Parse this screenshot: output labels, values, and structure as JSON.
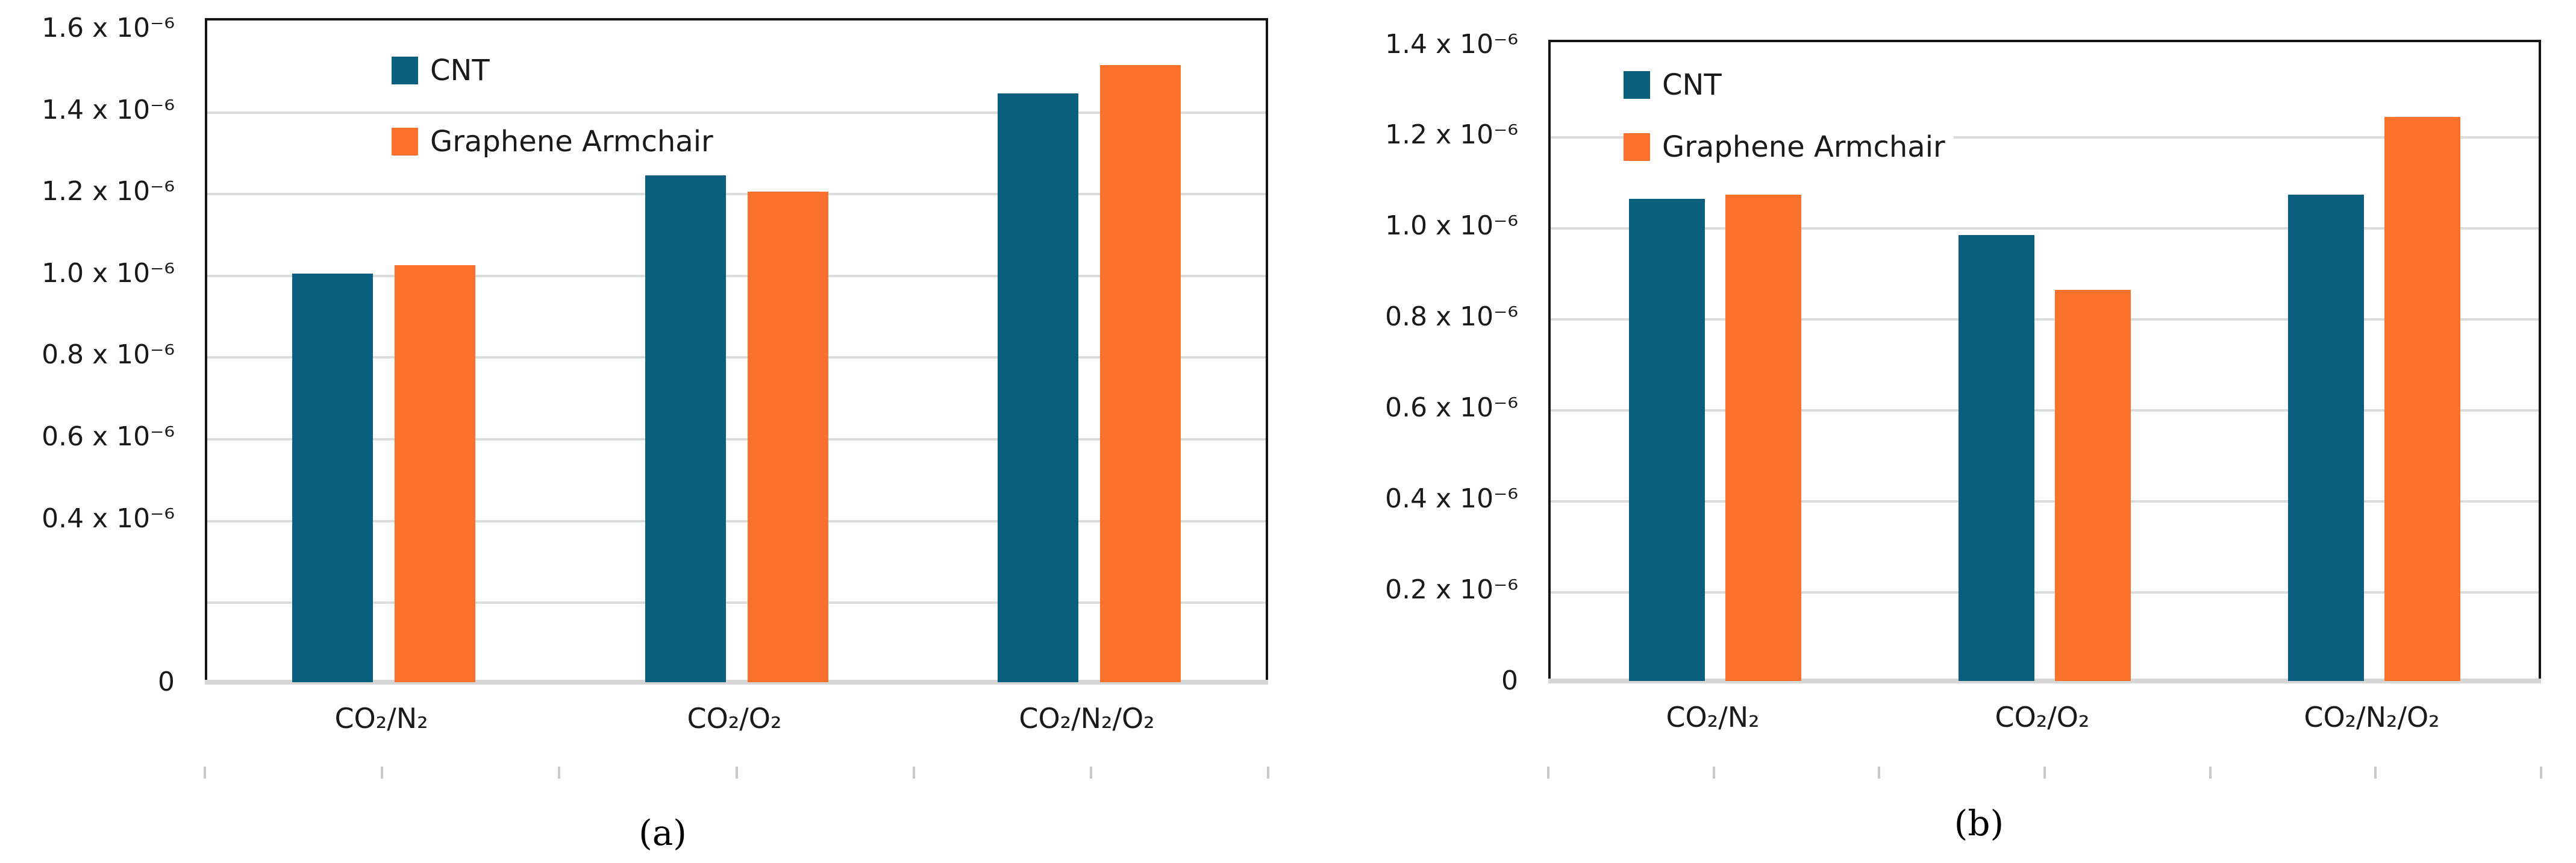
{
  "figure": {
    "description": "Two-panel grouped bar chart figure comparing CNT and Graphene Armchair membranes for three gas mixtures",
    "background_color": "#ffffff"
  },
  "captions": {
    "a": "(a)",
    "b": "(b)"
  },
  "colors": {
    "cnt": "#0A5E7E",
    "graphene_armchair": "#F9712B",
    "gridline": "#DBDBDB",
    "axis_band": "#D6D6D6",
    "border": "#141414",
    "text": "#1A1A1A",
    "minor_tick": "#C9C9C9"
  },
  "legend": {
    "items": [
      {
        "label": "CNT",
        "color": "#0A5E7E"
      },
      {
        "label": "Graphene Armchair",
        "color": "#F9712B"
      }
    ]
  },
  "chart_data": [
    {
      "id": "a",
      "type": "bar",
      "title": "",
      "xlabel": "",
      "ylabel": "",
      "caption": "(a)",
      "grid": true,
      "legend_position": "top-left",
      "categories": [
        "CO₂/N₂",
        "CO₂/O₂",
        "CO₂/N₂/O₂"
      ],
      "series": [
        {
          "name": "CNT",
          "color": "#0A5E7E",
          "values": [
            1e-06,
            1.24e-06,
            1.44e-06
          ]
        },
        {
          "name": "Graphene Armchair",
          "color": "#F9712B",
          "values": [
            1.02e-06,
            1.2e-06,
            1.51e-06
          ]
        }
      ],
      "ylim": [
        0,
        1.6e-06
      ],
      "yticks": [
        {
          "label": "1.6 x 10⁻⁶",
          "value": 1.6e-06
        },
        {
          "label": "1.4 x 10⁻⁶",
          "value": 1.4e-06
        },
        {
          "label": "1.2 x 10⁻⁶",
          "value": 1.2e-06
        },
        {
          "label": "1.0 x 10⁻⁶",
          "value": 1e-06
        },
        {
          "label": "0.8 x 10⁻⁶",
          "value": 8e-07
        },
        {
          "label": "0.6 x 10⁻⁶",
          "value": 6e-07
        },
        {
          "label": "0.4 x 10⁻⁶",
          "value": 4e-07
        },
        {
          "label": "0",
          "value": 0
        }
      ],
      "gridlines": [
        2e-07,
        4e-07,
        6e-07,
        8e-07,
        1e-06,
        1.2e-06,
        1.4e-06
      ]
    },
    {
      "id": "b",
      "type": "bar",
      "title": "",
      "xlabel": "",
      "ylabel": "",
      "caption": "(b)",
      "grid": true,
      "legend_position": "top-left",
      "categories": [
        "CO₂/N₂",
        "CO₂/O₂",
        "CO₂/N₂/O₂"
      ],
      "series": [
        {
          "name": "CNT",
          "color": "#0A5E7E",
          "values": [
            1.06e-06,
            9.8e-07,
            1.07e-06
          ]
        },
        {
          "name": "Graphene Armchair",
          "color": "#F9712B",
          "values": [
            1.07e-06,
            8.6e-07,
            1.24e-06
          ]
        }
      ],
      "ylim": [
        0,
        1.4e-06
      ],
      "yticks": [
        {
          "label": "1.4 x 10⁻⁶",
          "value": 1.4e-06
        },
        {
          "label": "1.2 x 10⁻⁶",
          "value": 1.2e-06
        },
        {
          "label": "1.0 x 10⁻⁶",
          "value": 1e-06
        },
        {
          "label": "0.8 x 10⁻⁶",
          "value": 8e-07
        },
        {
          "label": "0.6 x 10⁻⁶",
          "value": 6e-07
        },
        {
          "label": "0.4 x 10⁻⁶",
          "value": 4e-07
        },
        {
          "label": "0.2 x 10⁻⁶",
          "value": 2e-07
        },
        {
          "label": "0",
          "value": 0
        }
      ],
      "gridlines": [
        2e-07,
        4e-07,
        6e-07,
        8e-07,
        1e-06,
        1.2e-06
      ]
    }
  ]
}
